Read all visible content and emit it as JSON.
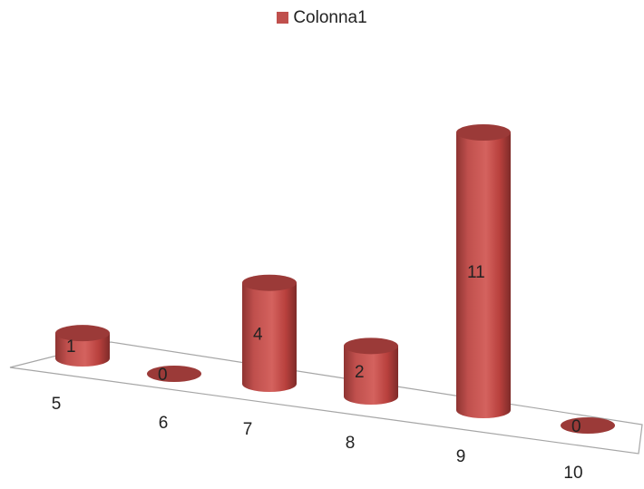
{
  "chart_data": {
    "type": "bar",
    "style": "3d-cylinder",
    "categories": [
      "5",
      "6",
      "7",
      "8",
      "9",
      "10"
    ],
    "series": [
      {
        "name": "Colonna1",
        "values": [
          1,
          0,
          4,
          2,
          11,
          0
        ]
      }
    ],
    "data_labels": [
      "1",
      "0",
      "4",
      "2",
      "11",
      "0"
    ],
    "legend_position": "top",
    "grid": false,
    "colors": {
      "series": "#C0504D",
      "top": "#9B3A38",
      "floor": "#A6A6A6"
    }
  }
}
